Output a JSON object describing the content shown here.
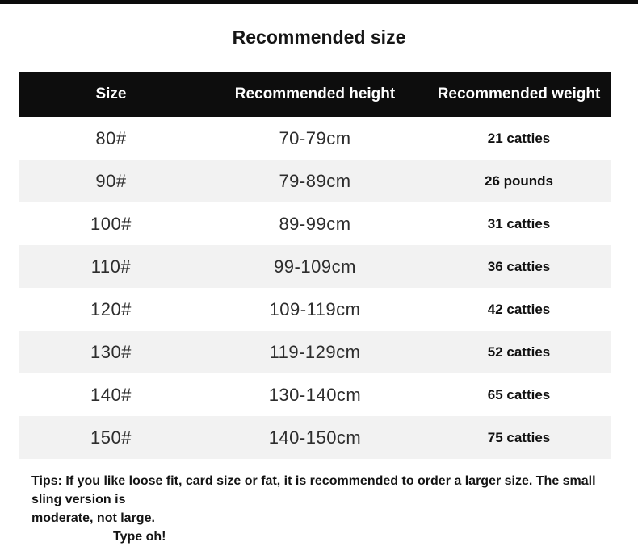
{
  "page": {
    "title": "Recommended size"
  },
  "chart_data": {
    "type": "table",
    "title": "Recommended size",
    "headers": [
      "Size",
      "Recommended height",
      "Recommended weight"
    ],
    "rows": [
      [
        "80#",
        "70-79cm",
        "21 catties"
      ],
      [
        "90#",
        "79-89cm",
        "26 pounds"
      ],
      [
        "100#",
        "89-99cm",
        "31 catties"
      ],
      [
        "110#",
        "99-109cm",
        "36 catties"
      ],
      [
        "120#",
        "109-119cm",
        "42 catties"
      ],
      [
        "130#",
        "119-129cm",
        "52 catties"
      ],
      [
        "140#",
        "130-140cm",
        "65 catties"
      ],
      [
        "150#",
        "140-150cm",
        "75 catties"
      ]
    ],
    "layout": {
      "header_style": "black background, white bold text",
      "row_striping": "white / light gray alternating starting white",
      "legend_position": "none",
      "grid": false
    }
  },
  "tips": {
    "line1": "Tips: If you like loose fit, card size or fat, it is recommended to order a larger size. The small sling version is",
    "line2": "moderate, not large.",
    "line3": "Type oh!"
  },
  "colors": {
    "top_bar": "#0b0b0b",
    "header_bg": "#0d0d0d",
    "header_text": "#ffffff",
    "row_alt_bg": "#f2f2f2",
    "body_text": "#2d2d2d",
    "weight_text": "#111111"
  }
}
